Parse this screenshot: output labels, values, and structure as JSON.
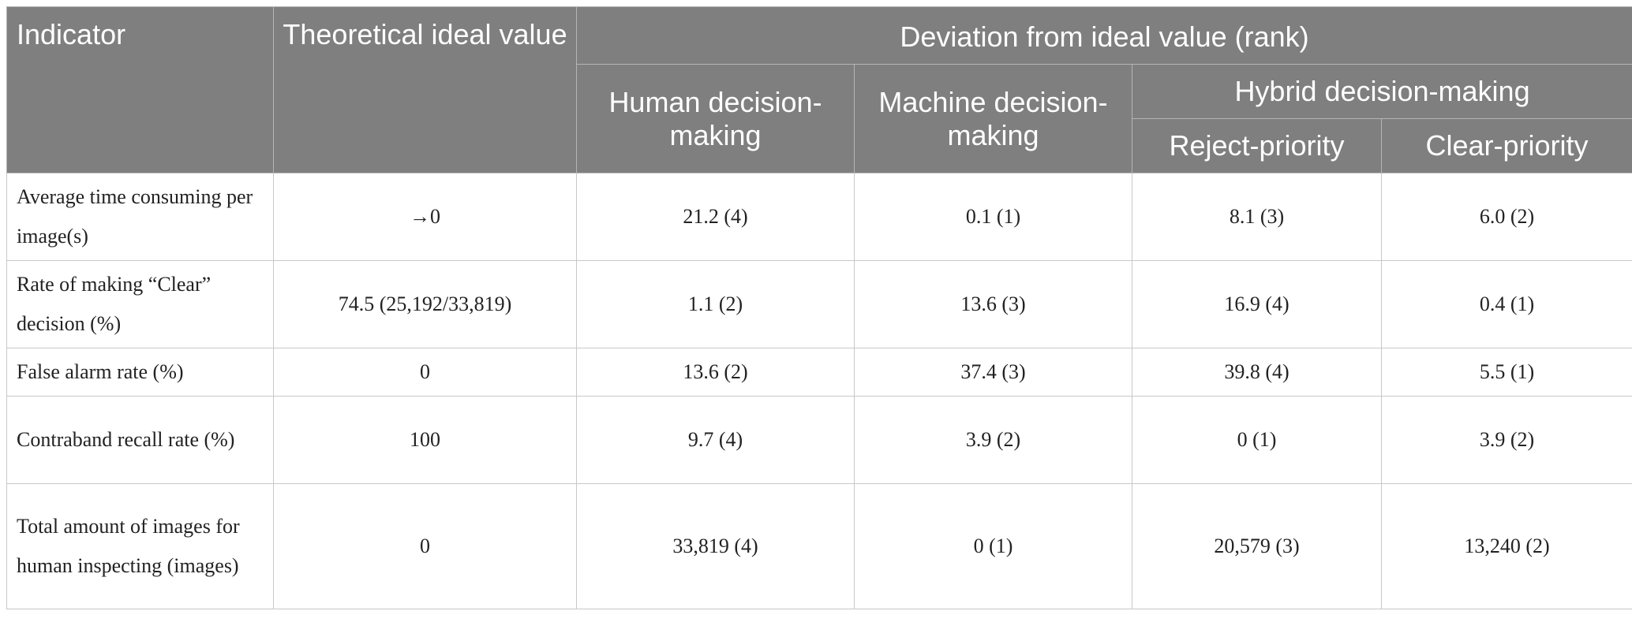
{
  "table": {
    "headers": {
      "indicator": "Indicator",
      "ideal": "Theoretical ideal value",
      "deviation": "Deviation from ideal value (rank)",
      "human": "Human decision-making",
      "machine": "Machine decision-making",
      "hybrid": "Hybrid decision-making",
      "reject": "Reject-priority",
      "clear": "Clear-priority"
    },
    "rows": [
      {
        "indicator": "Average time consuming per image(s)",
        "ideal": "→0",
        "human": "21.2 (4)",
        "machine": "0.1 (1)",
        "reject": "8.1 (3)",
        "clear": "6.0 (2)"
      },
      {
        "indicator": "Rate of making “Clear” decision (%)",
        "ideal": "74.5 (25,192/33,819)",
        "human": "1.1 (2)",
        "machine": "13.6 (3)",
        "reject": "16.9 (4)",
        "clear": "0.4 (1)"
      },
      {
        "indicator": "False alarm rate (%)",
        "ideal": "0",
        "human": "13.6 (2)",
        "machine": "37.4 (3)",
        "reject": "39.8 (4)",
        "clear": "5.5 (1)"
      },
      {
        "indicator": "Contraband recall rate (%)",
        "ideal": "100",
        "human": "9.7 (4)",
        "machine": "3.9 (2)",
        "reject": "0 (1)",
        "clear": "3.9 (2)"
      },
      {
        "indicator": "Total amount of images for human inspecting (images)",
        "ideal": "0",
        "human": "33,819 (4)",
        "machine": "0 (1)",
        "reject": "20,579 (3)",
        "clear": "13,240 (2)"
      }
    ]
  }
}
